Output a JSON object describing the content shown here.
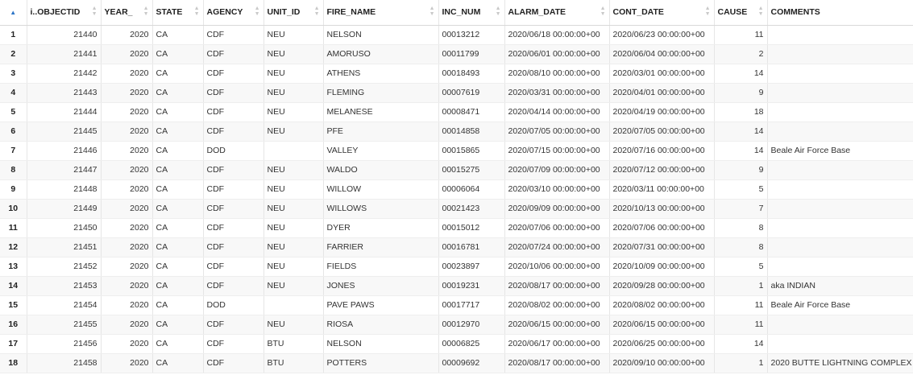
{
  "columns": [
    {
      "key": "rownum",
      "label": "",
      "align": "rn"
    },
    {
      "key": "objectid",
      "label": "i..OBJECTID",
      "align": "num"
    },
    {
      "key": "year",
      "label": "YEAR_",
      "align": "num"
    },
    {
      "key": "state",
      "label": "STATE",
      "align": "txt"
    },
    {
      "key": "agency",
      "label": "AGENCY",
      "align": "txt"
    },
    {
      "key": "unit_id",
      "label": "UNIT_ID",
      "align": "txt"
    },
    {
      "key": "fire_name",
      "label": "FIRE_NAME",
      "align": "txt"
    },
    {
      "key": "inc_num",
      "label": "INC_NUM",
      "align": "txt"
    },
    {
      "key": "alarm_date",
      "label": "ALARM_DATE",
      "align": "txt"
    },
    {
      "key": "cont_date",
      "label": "CONT_DATE",
      "align": "txt"
    },
    {
      "key": "cause",
      "label": "CAUSE",
      "align": "num"
    },
    {
      "key": "comments",
      "label": "COMMENTS",
      "align": "txt"
    }
  ],
  "rows": [
    [
      "1",
      "21440",
      "2020",
      "CA",
      "CDF",
      "NEU",
      "NELSON",
      "00013212",
      "2020/06/18 00:00:00+00",
      "2020/06/23 00:00:00+00",
      "11",
      ""
    ],
    [
      "2",
      "21441",
      "2020",
      "CA",
      "CDF",
      "NEU",
      "AMORUSO",
      "00011799",
      "2020/06/01 00:00:00+00",
      "2020/06/04 00:00:00+00",
      "2",
      ""
    ],
    [
      "3",
      "21442",
      "2020",
      "CA",
      "CDF",
      "NEU",
      "ATHENS",
      "00018493",
      "2020/08/10 00:00:00+00",
      "2020/03/01 00:00:00+00",
      "14",
      ""
    ],
    [
      "4",
      "21443",
      "2020",
      "CA",
      "CDF",
      "NEU",
      "FLEMING",
      "00007619",
      "2020/03/31 00:00:00+00",
      "2020/04/01 00:00:00+00",
      "9",
      ""
    ],
    [
      "5",
      "21444",
      "2020",
      "CA",
      "CDF",
      "NEU",
      "MELANESE",
      "00008471",
      "2020/04/14 00:00:00+00",
      "2020/04/19 00:00:00+00",
      "18",
      ""
    ],
    [
      "6",
      "21445",
      "2020",
      "CA",
      "CDF",
      "NEU",
      "PFE",
      "00014858",
      "2020/07/05 00:00:00+00",
      "2020/07/05 00:00:00+00",
      "14",
      ""
    ],
    [
      "7",
      "21446",
      "2020",
      "CA",
      "DOD",
      "",
      "VALLEY",
      "00015865",
      "2020/07/15 00:00:00+00",
      "2020/07/16 00:00:00+00",
      "14",
      "Beale Air Force Base"
    ],
    [
      "8",
      "21447",
      "2020",
      "CA",
      "CDF",
      "NEU",
      "WALDO",
      "00015275",
      "2020/07/09 00:00:00+00",
      "2020/07/12 00:00:00+00",
      "9",
      ""
    ],
    [
      "9",
      "21448",
      "2020",
      "CA",
      "CDF",
      "NEU",
      "WILLOW",
      "00006064",
      "2020/03/10 00:00:00+00",
      "2020/03/11 00:00:00+00",
      "5",
      ""
    ],
    [
      "10",
      "21449",
      "2020",
      "CA",
      "CDF",
      "NEU",
      "WILLOWS",
      "00021423",
      "2020/09/09 00:00:00+00",
      "2020/10/13 00:00:00+00",
      "7",
      ""
    ],
    [
      "11",
      "21450",
      "2020",
      "CA",
      "CDF",
      "NEU",
      "DYER",
      "00015012",
      "2020/07/06 00:00:00+00",
      "2020/07/06 00:00:00+00",
      "8",
      ""
    ],
    [
      "12",
      "21451",
      "2020",
      "CA",
      "CDF",
      "NEU",
      "FARRIER",
      "00016781",
      "2020/07/24 00:00:00+00",
      "2020/07/31 00:00:00+00",
      "8",
      ""
    ],
    [
      "13",
      "21452",
      "2020",
      "CA",
      "CDF",
      "NEU",
      "FIELDS",
      "00023897",
      "2020/10/06 00:00:00+00",
      "2020/10/09 00:00:00+00",
      "5",
      ""
    ],
    [
      "14",
      "21453",
      "2020",
      "CA",
      "CDF",
      "NEU",
      "JONES",
      "00019231",
      "2020/08/17 00:00:00+00",
      "2020/09/28 00:00:00+00",
      "1",
      "aka INDIAN"
    ],
    [
      "15",
      "21454",
      "2020",
      "CA",
      "DOD",
      "",
      "PAVE PAWS",
      "00017717",
      "2020/08/02 00:00:00+00",
      "2020/08/02 00:00:00+00",
      "11",
      "Beale Air Force Base"
    ],
    [
      "16",
      "21455",
      "2020",
      "CA",
      "CDF",
      "NEU",
      "RIOSA",
      "00012970",
      "2020/06/15 00:00:00+00",
      "2020/06/15 00:00:00+00",
      "11",
      ""
    ],
    [
      "17",
      "21456",
      "2020",
      "CA",
      "CDF",
      "BTU",
      "NELSON",
      "00006825",
      "2020/06/17 00:00:00+00",
      "2020/06/25 00:00:00+00",
      "14",
      ""
    ],
    [
      "18",
      "21458",
      "2020",
      "CA",
      "CDF",
      "BTU",
      "POTTERS",
      "00009692",
      "2020/08/17 00:00:00+00",
      "2020/09/10 00:00:00+00",
      "1",
      "2020 BUTTE LIGHTNING COMPLEX"
    ]
  ]
}
